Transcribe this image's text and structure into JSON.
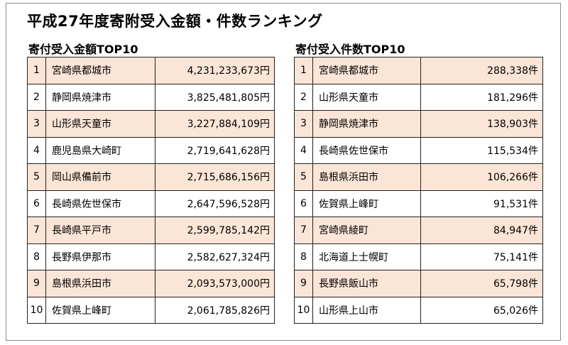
{
  "title": "平成27年度寄附受入金額・件数ランキング",
  "amount_section": {
    "heading": "寄付受入金額TOP10",
    "rows": [
      {
        "rank": "1",
        "name": "宮崎県都城市",
        "value": "4,231,233,673円"
      },
      {
        "rank": "2",
        "name": "静岡県焼津市",
        "value": "3,825,481,805円"
      },
      {
        "rank": "3",
        "name": "山形県天童市",
        "value": "3,227,884,109円"
      },
      {
        "rank": "4",
        "name": "鹿児島県大崎町",
        "value": "2,719,641,628円"
      },
      {
        "rank": "5",
        "name": "岡山県備前市",
        "value": "2,715,686,156円"
      },
      {
        "rank": "6",
        "name": "長崎県佐世保市",
        "value": "2,647,596,528円"
      },
      {
        "rank": "7",
        "name": "長崎県平戸市",
        "value": "2,599,785,142円"
      },
      {
        "rank": "8",
        "name": "長野県伊那市",
        "value": "2,582,627,324円"
      },
      {
        "rank": "9",
        "name": "島根県浜田市",
        "value": "2,093,573,000円"
      },
      {
        "rank": "10",
        "name": "佐賀県上峰町",
        "value": "2,061,785,826円"
      }
    ]
  },
  "count_section": {
    "heading": "寄付受入件数TOP10",
    "rows": [
      {
        "rank": "1",
        "name": "宮崎県都城市",
        "value": "288,338件"
      },
      {
        "rank": "2",
        "name": "山形県天童市",
        "value": "181,296件"
      },
      {
        "rank": "3",
        "name": "静岡県焼津市",
        "value": "138,903件"
      },
      {
        "rank": "4",
        "name": "長崎県佐世保市",
        "value": "115,534件"
      },
      {
        "rank": "5",
        "name": "島根県浜田市",
        "value": "106,266件"
      },
      {
        "rank": "6",
        "name": "佐賀県上峰町",
        "value": "91,531件"
      },
      {
        "rank": "7",
        "name": "宮崎県綾町",
        "value": "84,947件"
      },
      {
        "rank": "8",
        "name": "北海道上士幌町",
        "value": "75,141件"
      },
      {
        "rank": "9",
        "name": "長野県飯山市",
        "value": "65,798件"
      },
      {
        "rank": "10",
        "name": "山形県上山市",
        "value": "65,026件"
      }
    ]
  },
  "colors": {
    "odd_row_fill": "#fbe5d6",
    "even_row_fill": "#ffffff",
    "border": "#222222"
  }
}
